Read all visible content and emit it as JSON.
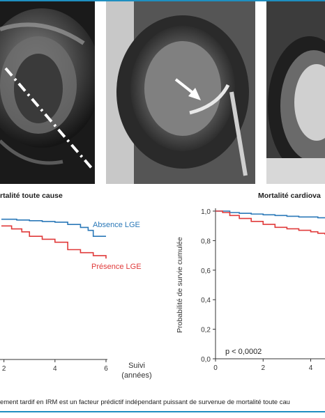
{
  "panels": {
    "left_title": "rtalité toute cause",
    "right_title": "Mortalité cardiova"
  },
  "caption": "ement tardif en IRM est un facteur prédictif indépendant puissant de survenue de mortalité toute cau",
  "colors": {
    "absence": "#2a78b8",
    "presence": "#e03a3a",
    "accent": "#1e8fc0"
  },
  "chart_data": [
    {
      "type": "line",
      "title": "rtalité toute cause",
      "xlabel": "Suivi (années)",
      "xlabel_lines": [
        "Suivi",
        "(années)"
      ],
      "xticks": [
        "2",
        "4",
        "6"
      ],
      "xlim": [
        1.9,
        6
      ],
      "ylim": [
        0,
        1
      ],
      "series": [
        {
          "name": "Absence LGE",
          "color": "#2a78b8",
          "x": [
            1.9,
            2.5,
            3,
            3.5,
            4,
            4.5,
            5,
            5.3,
            5.5,
            6
          ],
          "y": [
            0.945,
            0.94,
            0.935,
            0.93,
            0.925,
            0.91,
            0.89,
            0.87,
            0.83,
            0.83
          ]
        },
        {
          "name": "Présence LGE",
          "color": "#e03a3a",
          "x": [
            1.9,
            2.3,
            2.7,
            3,
            3.5,
            4,
            4.5,
            5,
            5.5,
            6
          ],
          "y": [
            0.9,
            0.88,
            0.86,
            0.83,
            0.81,
            0.79,
            0.74,
            0.72,
            0.7,
            0.68
          ]
        }
      ]
    },
    {
      "type": "line",
      "title": "Mortalité cardiova",
      "xlabel": "",
      "ylabel": "Probabilité de survie cumulée",
      "yticks": [
        "0,0",
        "0,2",
        "0,4",
        "0,6",
        "0,8",
        "1,0"
      ],
      "xticks": [
        "0",
        "2",
        "4"
      ],
      "xlim": [
        0,
        4.6
      ],
      "ylim": [
        0,
        1
      ],
      "annotation": "p < 0,0002",
      "series": [
        {
          "name": "Absence LGE",
          "color": "#2a78b8",
          "x": [
            0,
            0.3,
            0.6,
            1,
            1.5,
            2,
            2.5,
            3,
            3.5,
            4,
            4.3,
            4.6
          ],
          "y": [
            1.0,
            1.0,
            0.99,
            0.985,
            0.98,
            0.975,
            0.97,
            0.965,
            0.96,
            0.96,
            0.955,
            0.955
          ]
        },
        {
          "name": "Présence LGE",
          "color": "#e03a3a",
          "x": [
            0,
            0.3,
            0.6,
            1,
            1.5,
            2,
            2.5,
            3,
            3.5,
            4,
            4.3,
            4.6
          ],
          "y": [
            1.0,
            0.99,
            0.97,
            0.95,
            0.93,
            0.91,
            0.89,
            0.88,
            0.87,
            0.86,
            0.85,
            0.84
          ]
        }
      ]
    }
  ]
}
